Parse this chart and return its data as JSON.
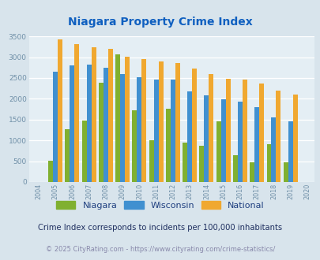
{
  "title": "Niagara Property Crime Index",
  "title_color": "#1060c0",
  "years": [
    2004,
    2005,
    2006,
    2007,
    2008,
    2009,
    2010,
    2011,
    2012,
    2013,
    2014,
    2015,
    2016,
    2017,
    2018,
    2019,
    2020
  ],
  "niagara": [
    0,
    510,
    1270,
    1470,
    2390,
    3070,
    1720,
    1000,
    1760,
    940,
    880,
    1450,
    640,
    470,
    910,
    470,
    0
  ],
  "wisconsin": [
    0,
    2660,
    2800,
    2830,
    2740,
    2600,
    2510,
    2460,
    2470,
    2180,
    2090,
    1990,
    1940,
    1800,
    1550,
    1460,
    0
  ],
  "national": [
    0,
    3420,
    3310,
    3240,
    3200,
    3020,
    2950,
    2900,
    2860,
    2720,
    2590,
    2490,
    2460,
    2360,
    2200,
    2110,
    0
  ],
  "niagara_color": "#80b030",
  "wisconsin_color": "#4090d0",
  "national_color": "#f0a830",
  "bg_color": "#d8e4ec",
  "plot_bg_color": "#e4eef4",
  "ylim": [
    0,
    3500
  ],
  "yticks": [
    0,
    500,
    1000,
    1500,
    2000,
    2500,
    3000,
    3500
  ],
  "tick_color": "#7090a8",
  "grid_color": "#ffffff",
  "legend_labels": [
    "Niagara",
    "Wisconsin",
    "National"
  ],
  "legend_color": "#204080",
  "footnote1": "Crime Index corresponds to incidents per 100,000 inhabitants",
  "footnote2": "© 2025 CityRating.com - https://www.cityrating.com/crime-statistics/",
  "footnote1_color": "#203060",
  "footnote2_color": "#8888aa"
}
